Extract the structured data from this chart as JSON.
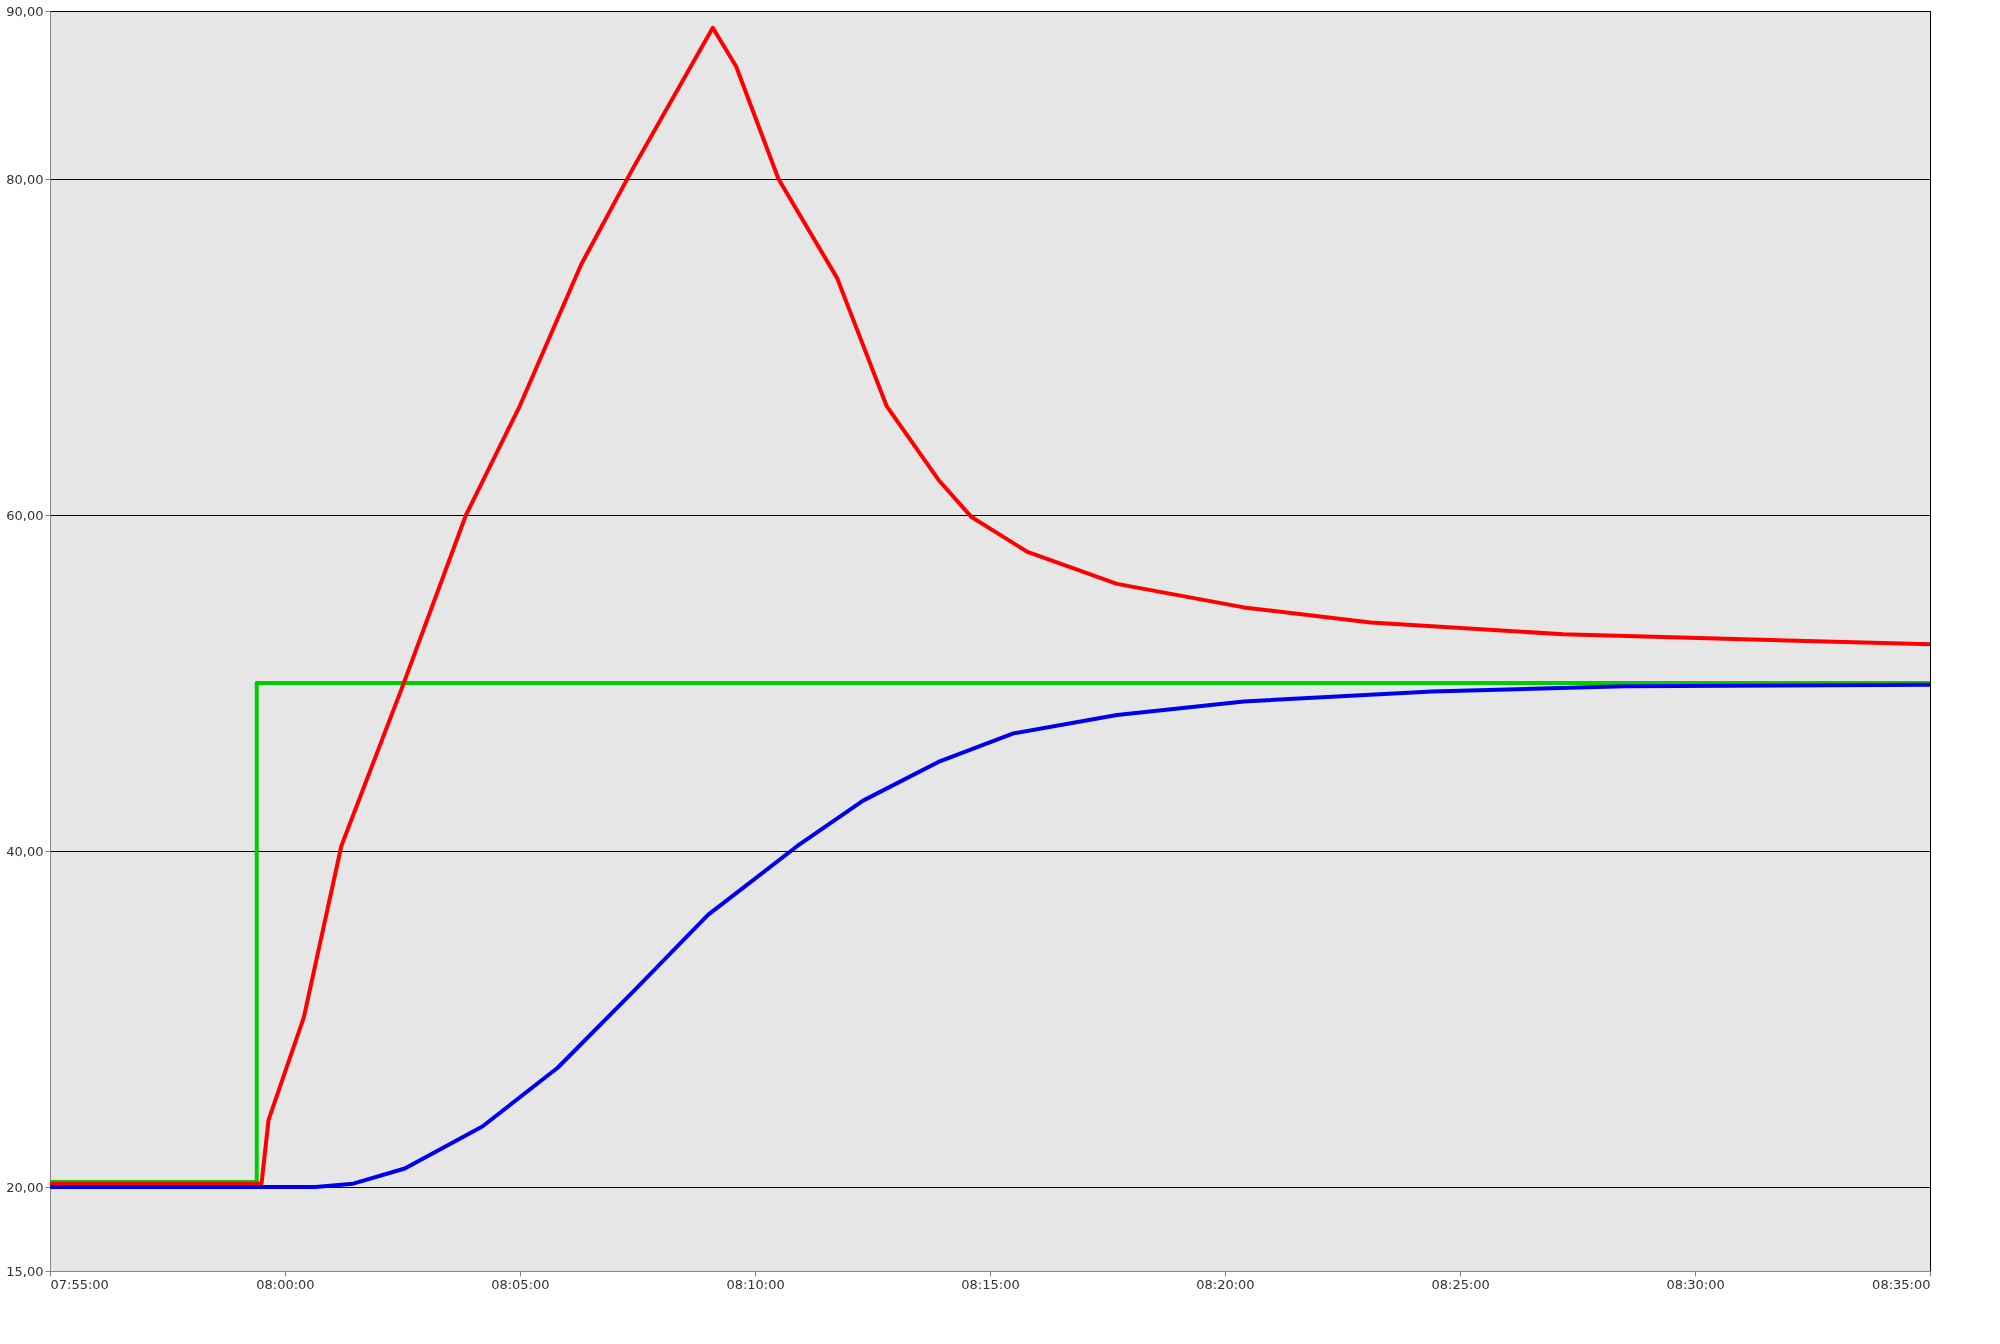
{
  "chart_data": {
    "type": "line",
    "xlim": [
      7.9167,
      8.5833
    ],
    "xticks": [
      {
        "value": 7.9167,
        "label": "07:55:00"
      },
      {
        "value": 8.0,
        "label": "08:00:00"
      },
      {
        "value": 8.0833,
        "label": "08:05:00"
      },
      {
        "value": 8.1667,
        "label": "08:10:00"
      },
      {
        "value": 8.25,
        "label": "08:15:00"
      },
      {
        "value": 8.3333,
        "label": "08:20:00"
      },
      {
        "value": 8.4167,
        "label": "08:25:00"
      },
      {
        "value": 8.5,
        "label": "08:30:00"
      },
      {
        "value": 8.5833,
        "label": "08:35:00"
      }
    ],
    "ylim": [
      15,
      90
    ],
    "yticks": [
      {
        "value": 15,
        "label": "15,00"
      },
      {
        "value": 20,
        "label": "20,00"
      },
      {
        "value": 40,
        "label": "40,00"
      },
      {
        "value": 60,
        "label": "60,00"
      },
      {
        "value": 80,
        "label": "80,00"
      },
      {
        "value": 90,
        "label": "90,00"
      }
    ],
    "grid": "y",
    "series": [
      {
        "color": "#00cc00",
        "x": [
          7.9167,
          7.99,
          7.99,
          8.5833
        ],
        "values": [
          20.3,
          20.3,
          50,
          50
        ]
      },
      {
        "color": "#ff0000",
        "x": [
          7.9167,
          7.9917,
          7.9942,
          8.0067,
          8.02,
          8.0417,
          8.0642,
          8.0833,
          8.105,
          8.1233,
          8.1517,
          8.16,
          8.175,
          8.1958,
          8.2133,
          8.2317,
          8.2433,
          8.2633,
          8.295,
          8.34,
          8.385,
          8.4533,
          8.5833
        ],
        "values": [
          20.2,
          20.2,
          24,
          30.1,
          40.3,
          49.8,
          60,
          66.5,
          74.9,
          80.6,
          89,
          86.7,
          80,
          74.1,
          66.5,
          62.1,
          59.9,
          57.8,
          55.9,
          54.5,
          53.6,
          52.9,
          52.3
        ]
      },
      {
        "color": "#0000ee",
        "x": [
          7.9167,
          8.0108,
          8.0242,
          8.0425,
          8.07,
          8.0967,
          8.1233,
          8.15,
          8.1817,
          8.205,
          8.2317,
          8.2583,
          8.295,
          8.34,
          8.4067,
          8.475,
          8.5833
        ],
        "values": [
          20,
          20,
          20.2,
          21.1,
          23.6,
          27.1,
          31.6,
          36.2,
          40.3,
          43,
          45.3,
          47,
          48.1,
          48.9,
          49.5,
          49.8,
          49.9
        ]
      }
    ]
  }
}
